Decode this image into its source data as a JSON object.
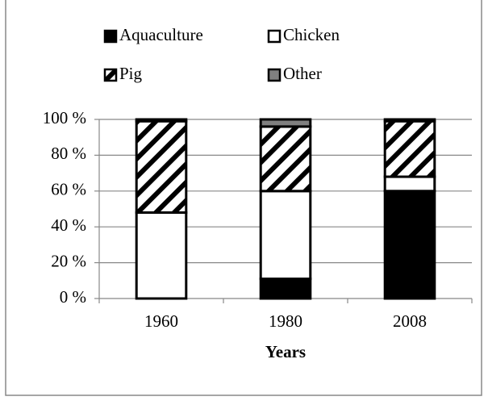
{
  "chart_data": {
    "type": "stacked_bar",
    "x_label": "Years",
    "categories": [
      "1960",
      "1980",
      "2008"
    ],
    "series": [
      {
        "name": "Aquaculture",
        "color": "#000000",
        "values": [
          0,
          11,
          60
        ]
      },
      {
        "name": "Chicken",
        "color": "#ffffff",
        "values": [
          48,
          49,
          8
        ]
      },
      {
        "name": "Pig",
        "color": "#000000",
        "pattern": "diagonal-hatch",
        "values": [
          51,
          36,
          31
        ]
      },
      {
        "name": "Other",
        "color": "#808080",
        "values": [
          1,
          4,
          1
        ]
      }
    ],
    "ylim": [
      0,
      100
    ],
    "yticks": [
      {
        "value": 0,
        "label": "0 %"
      },
      {
        "value": 20,
        "label": "20 %"
      },
      {
        "value": 40,
        "label": "40 %"
      },
      {
        "value": 60,
        "label": "60 %"
      },
      {
        "value": 80,
        "label": "80 %"
      },
      {
        "value": 100,
        "label": "100 %"
      }
    ],
    "grid": true,
    "legend": "top"
  }
}
